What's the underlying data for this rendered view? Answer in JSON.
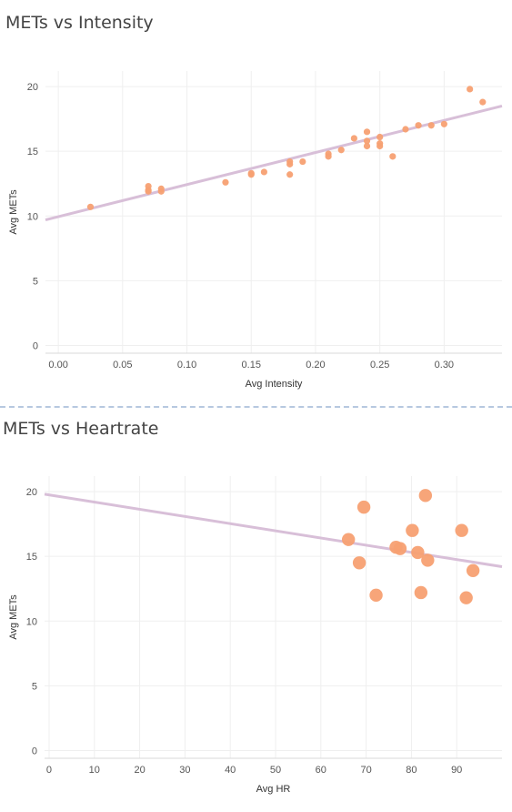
{
  "chart_data": [
    {
      "type": "scatter",
      "title": "METs vs Intensity",
      "xlabel": "Avg Intensity",
      "ylabel": "Avg METs",
      "xlim": [
        -0.01,
        0.345
      ],
      "ylim": [
        -0.6,
        21.2
      ],
      "xticks": [
        "0.00",
        "0.05",
        "0.10",
        "0.15",
        "0.20",
        "0.25",
        "0.30"
      ],
      "xtick_values": [
        0,
        0.05,
        0.1,
        0.15,
        0.2,
        0.25,
        0.3
      ],
      "yticks": [
        "0",
        "5",
        "10",
        "15",
        "20"
      ],
      "ytick_values": [
        0,
        5,
        10,
        15,
        20
      ],
      "grid": true,
      "point_color": "#f7a072",
      "trend_color": "#d8bfd8",
      "trendline": {
        "x": [
          -0.01,
          0.345
        ],
        "y": [
          9.7,
          18.5
        ]
      },
      "points": [
        {
          "x": 0.025,
          "y": 10.7
        },
        {
          "x": 0.07,
          "y": 12.3
        },
        {
          "x": 0.07,
          "y": 12.0
        },
        {
          "x": 0.07,
          "y": 11.9
        },
        {
          "x": 0.08,
          "y": 12.1
        },
        {
          "x": 0.08,
          "y": 11.9
        },
        {
          "x": 0.13,
          "y": 12.6
        },
        {
          "x": 0.15,
          "y": 13.3
        },
        {
          "x": 0.15,
          "y": 13.2
        },
        {
          "x": 0.16,
          "y": 13.4
        },
        {
          "x": 0.18,
          "y": 14.2
        },
        {
          "x": 0.18,
          "y": 14.0
        },
        {
          "x": 0.18,
          "y": 13.2
        },
        {
          "x": 0.19,
          "y": 14.2
        },
        {
          "x": 0.21,
          "y": 14.8
        },
        {
          "x": 0.21,
          "y": 14.6
        },
        {
          "x": 0.22,
          "y": 15.1
        },
        {
          "x": 0.23,
          "y": 16.0
        },
        {
          "x": 0.24,
          "y": 16.5
        },
        {
          "x": 0.24,
          "y": 15.8
        },
        {
          "x": 0.24,
          "y": 15.4
        },
        {
          "x": 0.25,
          "y": 16.1
        },
        {
          "x": 0.25,
          "y": 15.6
        },
        {
          "x": 0.25,
          "y": 15.4
        },
        {
          "x": 0.26,
          "y": 14.6
        },
        {
          "x": 0.27,
          "y": 16.7
        },
        {
          "x": 0.28,
          "y": 17.0
        },
        {
          "x": 0.29,
          "y": 17.0
        },
        {
          "x": 0.3,
          "y": 17.1
        },
        {
          "x": 0.32,
          "y": 19.8
        },
        {
          "x": 0.33,
          "y": 18.8
        }
      ]
    },
    {
      "type": "scatter",
      "title": "METs vs Heartrate",
      "xlabel": "Avg HR",
      "ylabel": "Avg METs",
      "xlim": [
        -1,
        100
      ],
      "ylim": [
        -0.6,
        21.2
      ],
      "xticks": [
        "0",
        "10",
        "20",
        "30",
        "40",
        "50",
        "60",
        "70",
        "80",
        "90"
      ],
      "xtick_values": [
        0,
        10,
        20,
        30,
        40,
        50,
        60,
        70,
        80,
        90
      ],
      "yticks": [
        "0",
        "5",
        "10",
        "15",
        "20"
      ],
      "ytick_values": [
        0,
        5,
        10,
        15,
        20
      ],
      "grid": true,
      "point_color": "#f7a072",
      "trend_color": "#d8bfd8",
      "trendline": {
        "x": [
          -1,
          100
        ],
        "y": [
          19.8,
          14.2
        ]
      },
      "points": [
        {
          "x": 66.1,
          "y": 16.3
        },
        {
          "x": 68.5,
          "y": 14.5
        },
        {
          "x": 69.5,
          "y": 18.8
        },
        {
          "x": 72.2,
          "y": 12.0
        },
        {
          "x": 76.6,
          "y": 15.7
        },
        {
          "x": 77.5,
          "y": 15.6
        },
        {
          "x": 80.2,
          "y": 17.0
        },
        {
          "x": 81.4,
          "y": 15.3
        },
        {
          "x": 82.1,
          "y": 12.2
        },
        {
          "x": 83.1,
          "y": 19.7
        },
        {
          "x": 83.6,
          "y": 14.7
        },
        {
          "x": 91.1,
          "y": 17.0
        },
        {
          "x": 92.1,
          "y": 11.8
        },
        {
          "x": 93.6,
          "y": 13.9
        }
      ]
    }
  ]
}
